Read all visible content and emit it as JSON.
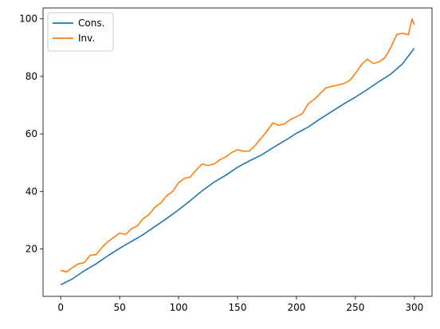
{
  "chart_data": {
    "type": "line",
    "title": "",
    "xlabel": "",
    "ylabel": "",
    "xlim": [
      -15,
      315
    ],
    "ylim": [
      3.5,
      103.8
    ],
    "x_ticks": [
      0,
      50,
      100,
      150,
      200,
      250,
      300
    ],
    "y_ticks": [
      20,
      40,
      60,
      80,
      100
    ],
    "grid": false,
    "legend_position": "top-left",
    "series": [
      {
        "name": "Cons.",
        "color": "#1f77b4",
        "x": [
          0,
          10,
          20,
          30,
          40,
          50,
          60,
          70,
          80,
          90,
          100,
          110,
          120,
          130,
          140,
          150,
          160,
          170,
          180,
          190,
          200,
          210,
          220,
          230,
          240,
          250,
          260,
          270,
          280,
          290,
          300
        ],
        "values": [
          7.5,
          9.6,
          12.4,
          14.8,
          17.6,
          20.2,
          22.6,
          25.0,
          27.8,
          30.6,
          33.6,
          36.8,
          40.2,
          43.2,
          45.6,
          48.4,
          50.6,
          52.6,
          55.2,
          57.6,
          60.2,
          62.4,
          65.2,
          67.8,
          70.4,
          72.8,
          75.4,
          78.2,
          80.8,
          84.4,
          89.8
        ]
      },
      {
        "name": "Inv.",
        "color": "#ff7f0e",
        "x": [
          0,
          5,
          10,
          15,
          20,
          25,
          30,
          35,
          40,
          45,
          50,
          55,
          60,
          65,
          70,
          75,
          80,
          85,
          90,
          95,
          100,
          105,
          110,
          115,
          120,
          125,
          130,
          135,
          140,
          145,
          150,
          155,
          160,
          165,
          170,
          175,
          180,
          185,
          190,
          195,
          200,
          205,
          210,
          215,
          220,
          225,
          230,
          235,
          240,
          245,
          250,
          255,
          260,
          265,
          270,
          275,
          280,
          285,
          290,
          295,
          298,
          300
        ],
        "values": [
          12.5,
          12.0,
          13.5,
          14.8,
          15.2,
          17.8,
          18.0,
          20.5,
          22.5,
          24.0,
          25.5,
          25.0,
          27.0,
          28.0,
          30.5,
          32.0,
          34.5,
          36.0,
          38.5,
          40.0,
          43.0,
          44.5,
          45.0,
          47.5,
          49.5,
          49.0,
          49.5,
          51.0,
          52.0,
          53.5,
          54.5,
          54.0,
          54.0,
          56.0,
          58.5,
          61.0,
          63.8,
          63.0,
          63.5,
          65.0,
          66.0,
          67.0,
          70.5,
          72.0,
          74.0,
          76.0,
          76.5,
          77.0,
          77.5,
          78.5,
          81.0,
          84.0,
          86.0,
          84.5,
          85.0,
          86.5,
          90.0,
          94.5,
          95.0,
          94.5,
          100.0,
          98.0
        ]
      }
    ]
  }
}
